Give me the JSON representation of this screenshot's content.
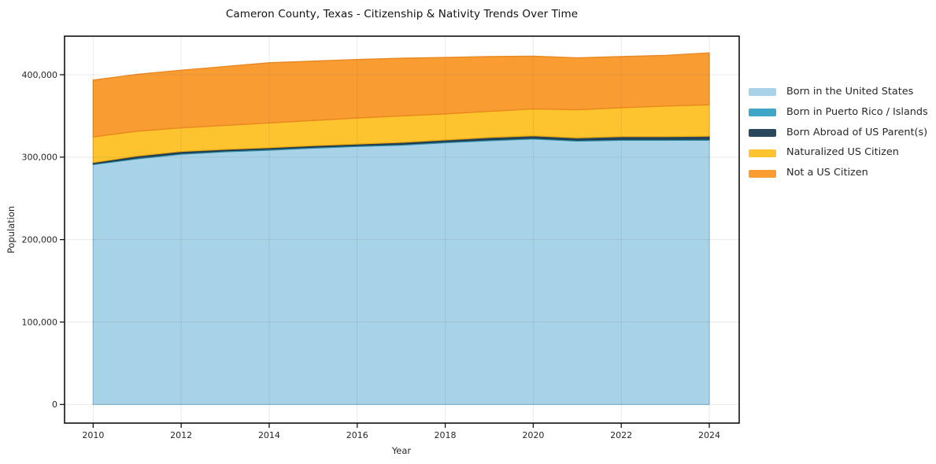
{
  "chart_data": {
    "type": "area",
    "stacked": true,
    "title": "Cameron County, Texas - Citizenship & Nativity Trends Over Time",
    "xlabel": "Year",
    "ylabel": "Population",
    "x": [
      2010,
      2011,
      2012,
      2013,
      2014,
      2015,
      2016,
      2017,
      2018,
      2019,
      2020,
      2021,
      2022,
      2023,
      2024
    ],
    "series": [
      {
        "name": "Born in the United States",
        "color": "#a8d2e7",
        "edge_color": "#8bc0da",
        "values": [
          291000,
          298000,
          303500,
          306500,
          308500,
          311000,
          313000,
          314500,
          317500,
          320000,
          322000,
          319500,
          320500,
          320500,
          320500
        ]
      },
      {
        "name": "Born in Puerto Rico / Islands",
        "color": "#3fa7c5",
        "edge_color": "#2e8aa5",
        "values": [
          1000,
          1200,
          1200,
          1200,
          1200,
          1200,
          1200,
          1200,
          1200,
          1200,
          1200,
          1200,
          1200,
          1200,
          1300
        ]
      },
      {
        "name": "Born Abroad of US Parent(s)",
        "color": "#29485d",
        "edge_color": "#1e3748",
        "values": [
          1500,
          2300,
          2300,
          1800,
          1800,
          1800,
          1800,
          2300,
          2300,
          2800,
          2800,
          2800,
          3300,
          3300,
          3700
        ]
      },
      {
        "name": "Naturalized US Citizen",
        "color": "#fdc42f",
        "edge_color": "#f0ad10",
        "values": [
          31000,
          30000,
          28500,
          29000,
          30000,
          30500,
          31500,
          32000,
          31500,
          31500,
          32500,
          34000,
          35000,
          37000,
          38000
        ]
      },
      {
        "name": "Not a US Citizen",
        "color": "#f99d33",
        "edge_color": "#e8861f",
        "values": [
          69000,
          69000,
          70000,
          71500,
          73000,
          72000,
          71000,
          70000,
          68500,
          66500,
          64000,
          63000,
          62000,
          61500,
          63000
        ]
      }
    ],
    "xticks": {
      "values": [
        2010,
        2012,
        2014,
        2016,
        2018,
        2020,
        2022,
        2024
      ],
      "labels": [
        "2010",
        "2012",
        "2014",
        "2016",
        "2018",
        "2020",
        "2022",
        "2024"
      ]
    },
    "yticks": {
      "values": [
        0,
        100000,
        200000,
        300000,
        400000
      ],
      "labels": [
        "0",
        "100,000",
        "200,000",
        "300,000",
        "400,000"
      ]
    },
    "xlim": [
      2009.35,
      2024.68
    ],
    "ylim": [
      -22600,
      446750
    ],
    "grid": true,
    "legend_position": "right-outside"
  }
}
